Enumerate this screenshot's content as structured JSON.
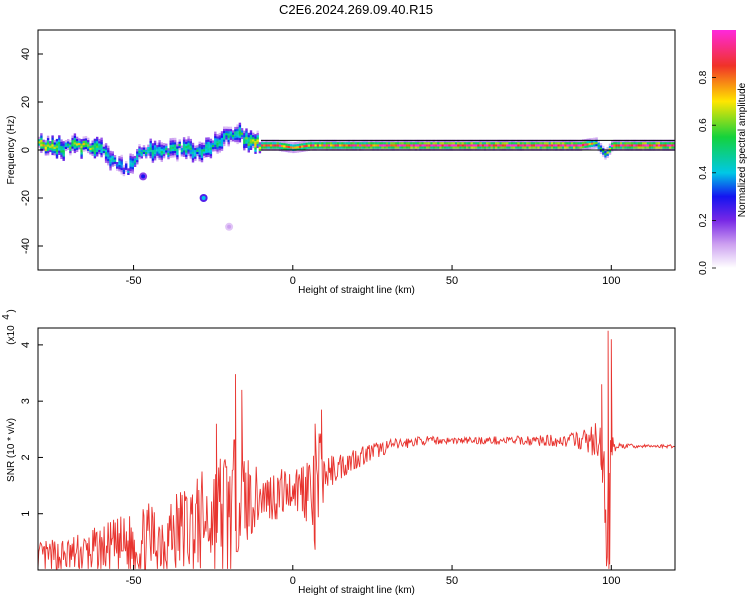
{
  "title": "C2E6.2024.269.09.40.R15",
  "chart_data": [
    {
      "type": "heatmap",
      "xlabel": "Height of straight line (km)",
      "ylabel": "Frequency (Hz)",
      "xlim": [
        -80,
        120
      ],
      "ylim": [
        -50,
        50
      ],
      "x_ticks": [
        -50,
        0,
        50,
        100
      ],
      "y_ticks": [
        -40,
        -20,
        0,
        20,
        40
      ],
      "colorbar": {
        "label": "Normalized spectral amplitude",
        "range": [
          0,
          1
        ],
        "ticks": [
          0.0,
          0.2,
          0.4,
          0.6,
          0.8
        ],
        "tick_labels": [
          "0.0",
          "0.2",
          "0.4",
          "0.6",
          "0.8"
        ]
      },
      "ridge": [
        {
          "x": -78,
          "freq": 2,
          "amp": 0.7
        },
        {
          "x": -72,
          "freq": 1,
          "amp": 0.5
        },
        {
          "x": -66,
          "freq": 2,
          "amp": 0.7
        },
        {
          "x": -60,
          "freq": 0,
          "amp": 0.45
        },
        {
          "x": -56,
          "freq": -6,
          "amp": 0.4
        },
        {
          "x": -52,
          "freq": -8,
          "amp": 0.35
        },
        {
          "x": -48,
          "freq": 0,
          "amp": 0.5
        },
        {
          "x": -42,
          "freq": -1,
          "amp": 0.45
        },
        {
          "x": -36,
          "freq": 1,
          "amp": 0.5
        },
        {
          "x": -30,
          "freq": 0,
          "amp": 0.45
        },
        {
          "x": -26,
          "freq": 1,
          "amp": 0.5
        },
        {
          "x": -22,
          "freq": 6,
          "amp": 0.45
        },
        {
          "x": -18,
          "freq": 7,
          "amp": 0.5
        },
        {
          "x": -14,
          "freq": 4,
          "amp": 0.55
        },
        {
          "x": -10,
          "freq": 2,
          "amp": 0.8
        },
        {
          "x": -5,
          "freq": 2,
          "amp": 0.85
        },
        {
          "x": 0,
          "freq": 1,
          "amp": 0.75
        },
        {
          "x": 5,
          "freq": 2,
          "amp": 0.8
        },
        {
          "x": 10,
          "freq": 2,
          "amp": 0.85
        },
        {
          "x": 20,
          "freq": 2,
          "amp": 0.85
        },
        {
          "x": 30,
          "freq": 2,
          "amp": 0.9
        },
        {
          "x": 40,
          "freq": 2,
          "amp": 0.95
        },
        {
          "x": 50,
          "freq": 2,
          "amp": 0.95
        },
        {
          "x": 60,
          "freq": 2,
          "amp": 0.95
        },
        {
          "x": 70,
          "freq": 2,
          "amp": 0.95
        },
        {
          "x": 80,
          "freq": 2,
          "amp": 0.95
        },
        {
          "x": 90,
          "freq": 2,
          "amp": 0.95
        },
        {
          "x": 95,
          "freq": 3,
          "amp": 0.6
        },
        {
          "x": 98,
          "freq": -2,
          "amp": 0.5
        },
        {
          "x": 100,
          "freq": 2,
          "amp": 0.9
        },
        {
          "x": 110,
          "freq": 2,
          "amp": 0.95
        },
        {
          "x": 120,
          "freq": 2,
          "amp": 0.95
        }
      ],
      "spots": [
        {
          "x": -47,
          "freq": -11,
          "amp": 0.3
        },
        {
          "x": -28,
          "freq": -20,
          "amp": 0.4
        },
        {
          "x": -20,
          "freq": -32,
          "amp": 0.1
        }
      ]
    },
    {
      "type": "line",
      "xlabel": "Height of straight line (km)",
      "ylabel": "SNR (10 * v/v)",
      "y_multiplier": "(x10",
      "y_multiplier_exp": "4",
      "y_multiplier_close": ")",
      "xlim": [
        -80,
        120
      ],
      "ylim": [
        0,
        4.3
      ],
      "x_ticks": [
        -50,
        0,
        50,
        100
      ],
      "y_ticks": [
        1,
        2,
        3,
        4
      ],
      "line_color": "#e8342f",
      "series": [
        {
          "x": [
            -80,
            -70,
            -60,
            -50,
            -40,
            -30,
            -25,
            -20,
            -18,
            -15,
            -10,
            -5,
            0,
            5,
            7,
            8,
            10,
            15,
            20,
            30,
            40,
            50,
            60,
            70,
            80,
            90,
            95,
            98,
            99,
            100,
            102,
            110,
            120
          ],
          "base": [
            0.2,
            0.25,
            0.35,
            0.45,
            0.6,
            0.8,
            0.95,
            1.05,
            1.3,
            1.25,
            1.3,
            1.35,
            1.45,
            1.5,
            1.0,
            1.6,
            1.7,
            1.85,
            2.0,
            2.2,
            2.3,
            2.3,
            2.3,
            2.3,
            2.3,
            2.3,
            2.3,
            1.5,
            0.2,
            2.3,
            2.2,
            2.2,
            2.2
          ],
          "amp": [
            0.3,
            0.35,
            0.45,
            0.6,
            0.75,
            0.9,
            1.0,
            1.4,
            1.0,
            0.9,
            0.4,
            0.5,
            0.35,
            0.7,
            1.0,
            1.2,
            0.3,
            0.25,
            0.2,
            0.12,
            0.08,
            0.06,
            0.07,
            0.08,
            0.1,
            0.15,
            0.35,
            1.0,
            1.5,
            0.3,
            0.05,
            0.03,
            0.03
          ],
          "peaks": [
            {
              "x": -18,
              "y": 3.48
            },
            {
              "x": -16,
              "y": 3.2
            },
            {
              "x": -24,
              "y": 2.6
            },
            {
              "x": -34,
              "y": 1.4
            },
            {
              "x": 9,
              "y": 2.85
            },
            {
              "x": 7,
              "y": 2.6
            },
            {
              "x": 97,
              "y": 3.3
            },
            {
              "x": 99,
              "y": 4.25
            },
            {
              "x": 100,
              "y": 4.1
            },
            {
              "x": 99.5,
              "y": 0.1
            }
          ]
        }
      ]
    }
  ]
}
